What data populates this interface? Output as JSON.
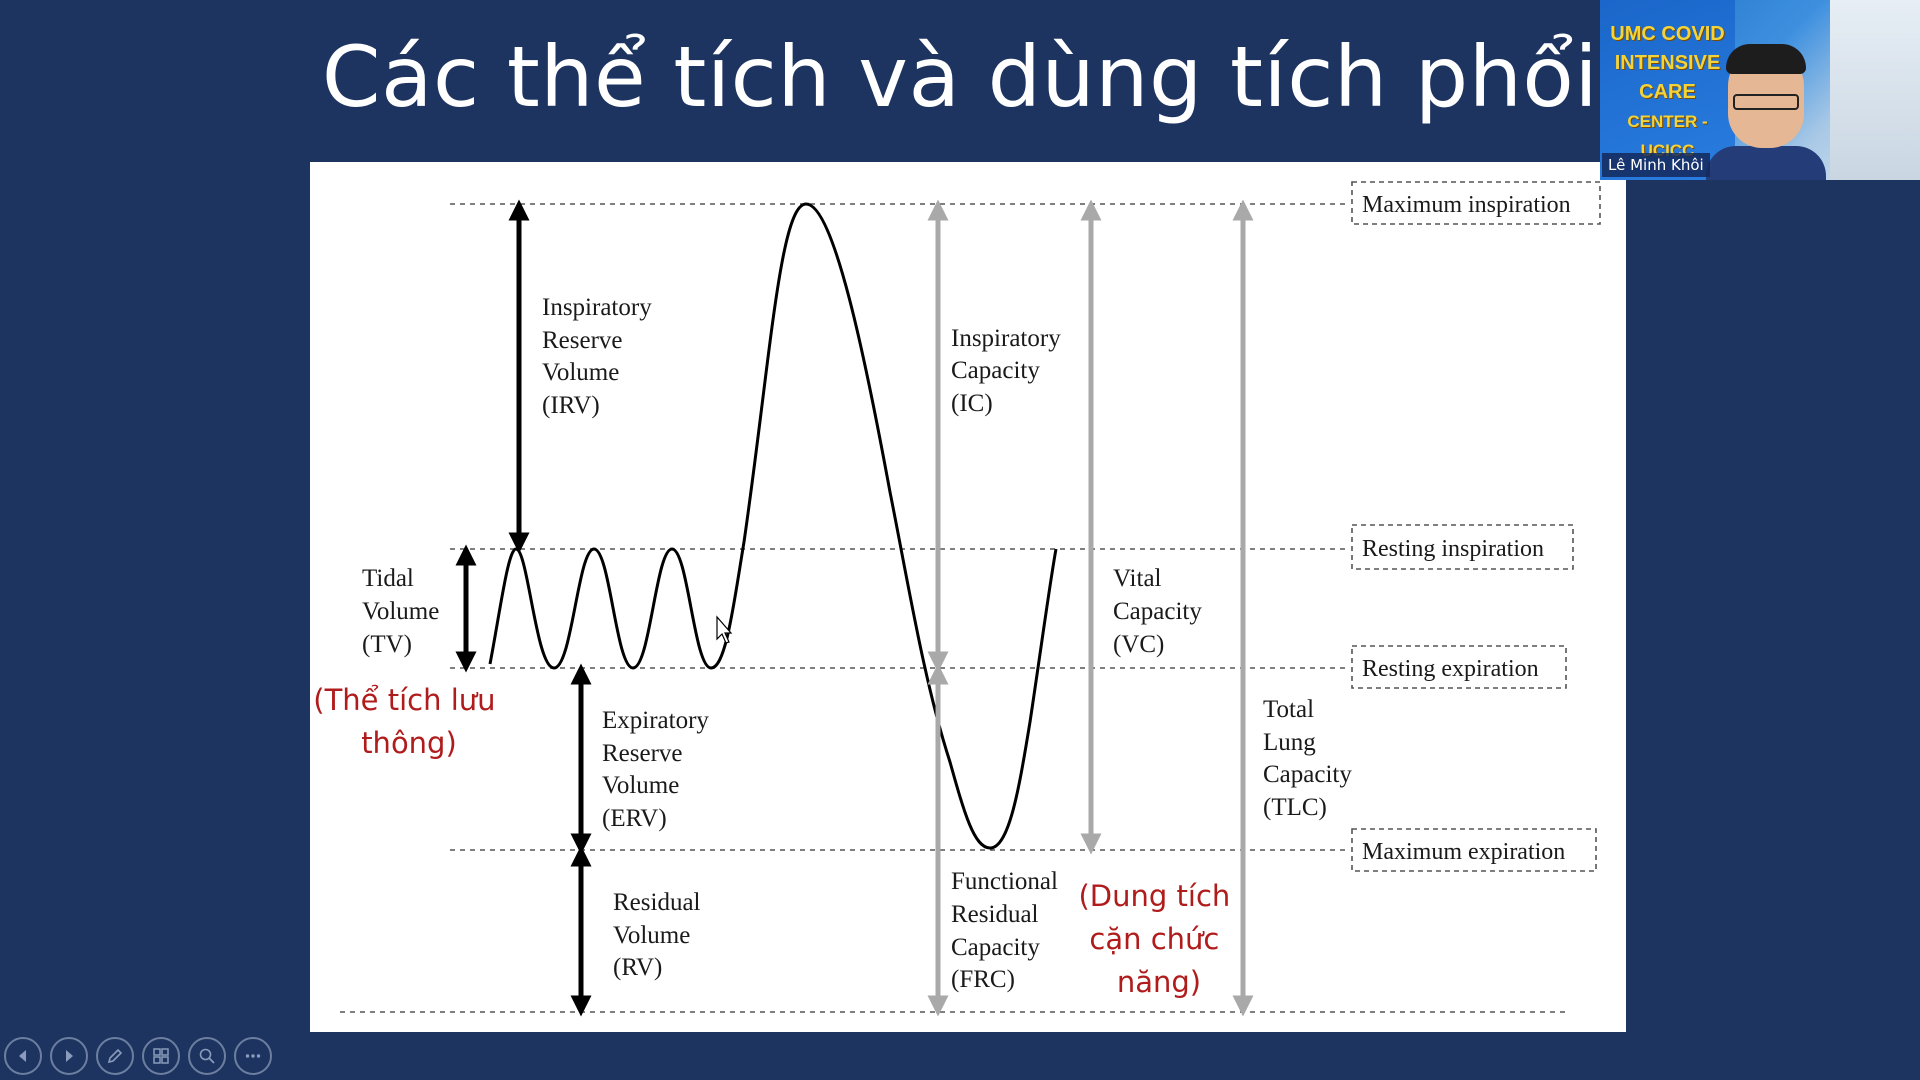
{
  "slide": {
    "title": "Các thể tích và dùng tích phổi"
  },
  "diagram": {
    "levels": {
      "max_inspiration": "Maximum inspiration",
      "resting_inspiration": "Resting inspiration",
      "resting_expiration": "Resting expiration",
      "max_expiration": "Maximum expiration"
    },
    "volumes": {
      "irv": [
        "Inspiratory",
        "Reserve",
        "Volume",
        "(IRV)"
      ],
      "tv": [
        "Tidal",
        "Volume",
        "(TV)"
      ],
      "erv": [
        "Expiratory",
        "Reserve",
        "Volume",
        "(ERV)"
      ],
      "rv": [
        "Residual",
        "Volume",
        "(RV)"
      ]
    },
    "capacities": {
      "ic": [
        "Inspiratory",
        "Capacity",
        "(IC)"
      ],
      "vc": [
        "Vital",
        "Capacity",
        "(VC)"
      ],
      "tlc": [
        "Total",
        "Lung",
        "Capacity",
        "(TLC)"
      ],
      "frc": [
        "Functional",
        "Residual",
        "Capacity",
        "(FRC)"
      ]
    },
    "annotations": {
      "tidal_vi": [
        "(Thể tích lưu",
        "thông)"
      ],
      "frc_vi": [
        "(Dung tích",
        "cặn chức",
        "năng)"
      ]
    },
    "colors": {
      "volume_arrow": "#000000",
      "capacity_arrow": "#a9a9a9",
      "annotation_red": "#b01c1c"
    }
  },
  "webcam": {
    "banner": [
      "UMC COVID",
      "INTENSIVE",
      "CARE",
      "CENTER - UCICC"
    ],
    "presenter_name": "Lê Minh Khôi"
  },
  "toolbar": {
    "icons": [
      "previous-slide-icon",
      "next-slide-icon",
      "pen-icon",
      "slide-grid-icon",
      "zoom-icon",
      "more-options-icon"
    ]
  }
}
